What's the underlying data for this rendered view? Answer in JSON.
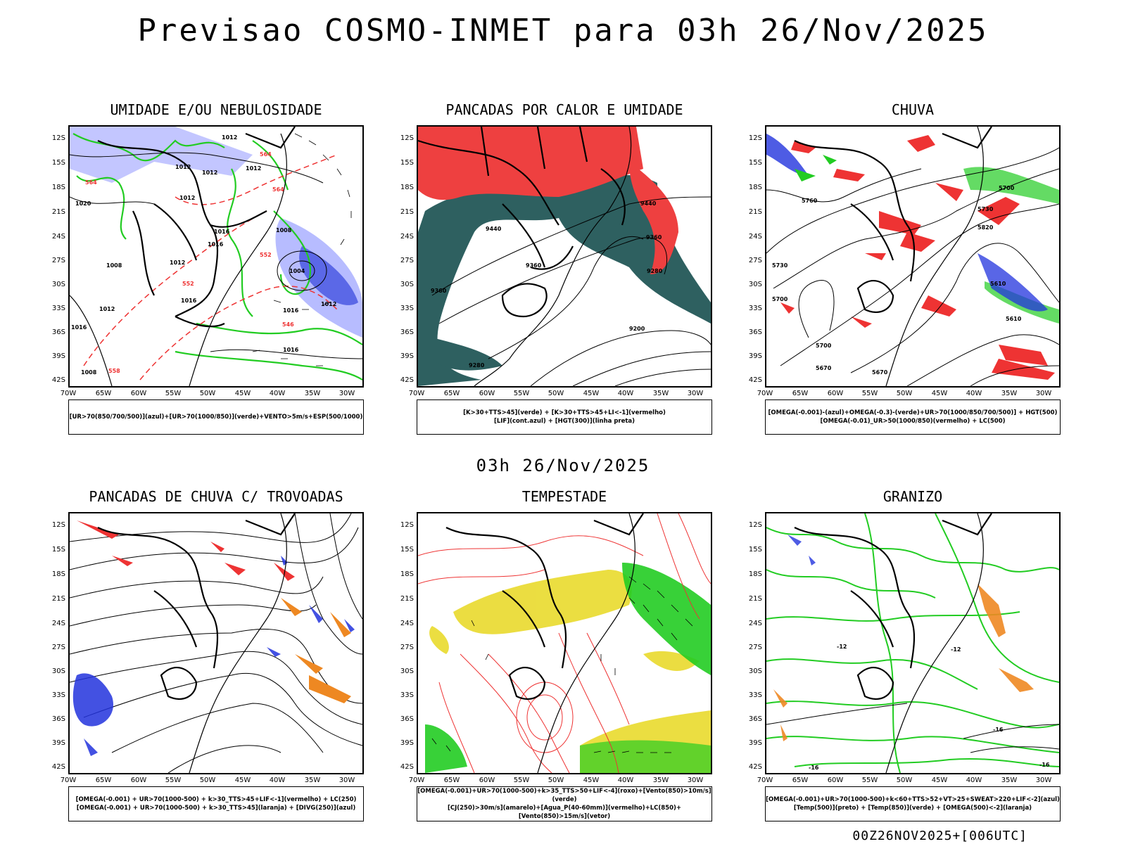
{
  "header": {
    "title": "Previsao COSMO-INMET  para 03h 26/Nov/2025",
    "subtitle": "03h 26/Nov/2025",
    "footer": "00Z26NOV2025+[006UTC]"
  },
  "axes": {
    "lat_labels": [
      "12S",
      "15S",
      "18S",
      "21S",
      "24S",
      "27S",
      "30S",
      "33S",
      "36S",
      "39S",
      "42S"
    ],
    "lon_labels": [
      "70W",
      "65W",
      "60W",
      "55W",
      "50W",
      "45W",
      "40W",
      "35W",
      "30W"
    ]
  },
  "colors": {
    "green": "#22cc22",
    "red": "#ee3333",
    "blue": "#2233dd",
    "lightblue": "#aab0ff",
    "teal": "#2e6060",
    "yellow": "#e8d820",
    "orange": "#ee8822",
    "black": "#000000"
  },
  "panels": [
    {
      "title": "UMIDADE E/OU NEBULOSIDADE",
      "legend": [
        "[UR>70(850/700/500)](azul)+[UR>70(1000/850)](verde)+VENTO>5m/s+ESP(500/1000)"
      ],
      "labels": [
        "1012",
        "1012",
        "1012",
        "1012",
        "1016",
        "1016",
        "1008",
        "1004",
        "1012",
        "1016",
        "1008",
        "1012",
        "1016",
        "1008",
        "1020",
        "1016",
        "1012",
        "1012",
        "1016",
        "564",
        "564",
        "564",
        "552",
        "546",
        "558",
        "552"
      ]
    },
    {
      "title": "PANCADAS POR CALOR E UMIDADE",
      "legend": [
        "[K>30+TTS>45](verde) + [K>30+TTS>45+LI<-1](vermelho)",
        "[LIF](cont.azul) + [HGT(300)](linha preta)"
      ],
      "labels": [
        "9440",
        "9440",
        "9360",
        "9360",
        "9280",
        "9360",
        "9200",
        "9280"
      ]
    },
    {
      "title": "CHUVA",
      "legend": [
        "[OMEGA(-0.001)-(azul)+OMEGA(-0.3)-(verde)+UR>70(1000/850/700/500)] + HGT(500)",
        "[OMEGA(-0.01)_UR>50(1000/850)(vermelho) + LC(500)"
      ],
      "labels": [
        "5730",
        "5760",
        "5820",
        "5700",
        "5730",
        "5670",
        "5700",
        "5610",
        "5670",
        "5700",
        "5610"
      ]
    },
    {
      "title": "PANCADAS DE CHUVA C/ TROVOADAS",
      "legend": [
        "[OMEGA(-0.001) + UR>70(1000-500) + k>30_TTS>45+LIF<-1](vermelho) + LC(250)",
        "[OMEGA(-0.001) + UR>70(1000-500) + k>30_TTS>45](laranja) + [DIVG(250)](azul)"
      ],
      "labels": []
    },
    {
      "title": "TEMPESTADE",
      "legend": [
        "[OMEGA(-0.001)+UR>70(1000-500)+k>35_TTS>50+LIF<-4](roxo)+[Vento(850)>10m/s](verde)",
        "[CJ(250)>30m/s](amarelo)+[Agua_P(40-60mm)](vermelho)+LC(850)+[Vento(850)>15m/s](vetor)"
      ],
      "labels": []
    },
    {
      "title": "GRANIZO",
      "legend": [
        "[OMEGA(-0.001)+UR>70(1000-500)+k<60+TTS>52+VT>25+SWEAT>220+LIF<-2](azul)",
        "[Temp(500)](preto) + [Temp(850)](verde) + [OMEGA(500)<-2](laranja)"
      ],
      "labels": [
        "-12",
        "-16",
        "-12",
        "-16",
        "-16"
      ]
    }
  ]
}
